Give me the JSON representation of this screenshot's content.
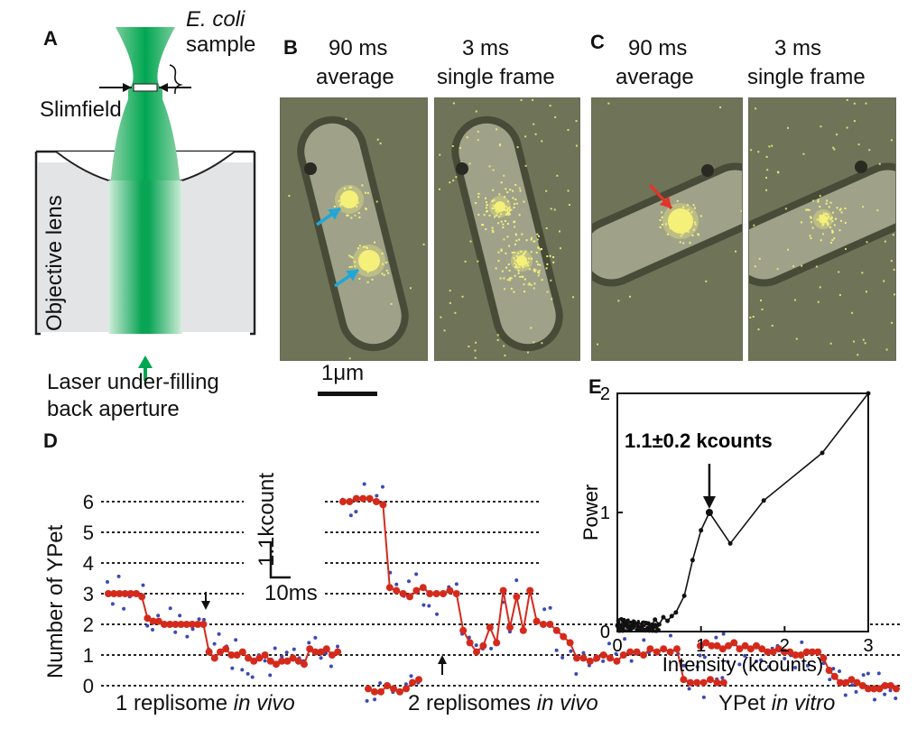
{
  "panels": {
    "a": {
      "letter": "A",
      "ecoli": "E. coli",
      "sample": "sample",
      "slimfield": "Slimfield",
      "objective": "Objective lens",
      "laser_line1": "Laser under-filling",
      "laser_line2": "back aperture"
    },
    "b": {
      "letter": "B",
      "left_title_1": "90 ms",
      "left_title_2": "average",
      "right_title_1": "3 ms",
      "right_title_2": "single frame",
      "scalebar": "1μm"
    },
    "c": {
      "letter": "C",
      "left_title_1": "90 ms",
      "left_title_2": "average",
      "right_title_1": "3 ms",
      "right_title_2": "single frame"
    },
    "d": {
      "letter": "D",
      "ylabel": "Number of YPet",
      "yticks": [
        "6",
        "5",
        "4",
        "3",
        "2",
        "1",
        "0"
      ],
      "scale_y": "1.1kcount",
      "scale_x": "10ms",
      "label_1_plain": "1 replisome ",
      "label_1_italic": "in vivo",
      "label_2_plain": "2 replisomes ",
      "label_2_italic": "in vivo",
      "label_3_plain": "YPet ",
      "label_3_italic": "in vitro"
    },
    "e": {
      "letter": "E"
    }
  },
  "colors": {
    "laser_green": "#00a651",
    "step_red": "#d42a1c",
    "dot_blue": "#3b49b5",
    "spot_yellow": "#f4f07a",
    "arrow_cyan": "#1fa7d8",
    "arrow_red": "#e0352b"
  },
  "chart_data": {
    "type": "line",
    "ylabel": "Power",
    "xlabel": "Intensity (kcounts)",
    "xlim": [
      0,
      3
    ],
    "ylim": [
      0,
      2
    ],
    "xticks": [
      "0",
      "1",
      "2",
      "3"
    ],
    "yticks": [
      "0",
      "1",
      "2"
    ],
    "annotation": "1.1±0.2 kcounts",
    "annotation_x": 1.1,
    "x": [
      0.0,
      0.05,
      0.1,
      0.15,
      0.2,
      0.25,
      0.3,
      0.35,
      0.4,
      0.45,
      0.5,
      0.55,
      0.6,
      0.65,
      0.7,
      0.8,
      0.9,
      1.0,
      1.1,
      1.35,
      1.75,
      2.45,
      3.0
    ],
    "y": [
      0.05,
      0.02,
      0.06,
      0.01,
      0.08,
      0.03,
      0.05,
      0.07,
      0.04,
      0.1,
      0.06,
      0.12,
      0.09,
      0.13,
      0.16,
      0.3,
      0.6,
      0.85,
      1.0,
      0.74,
      1.1,
      1.5,
      2.0
    ]
  }
}
